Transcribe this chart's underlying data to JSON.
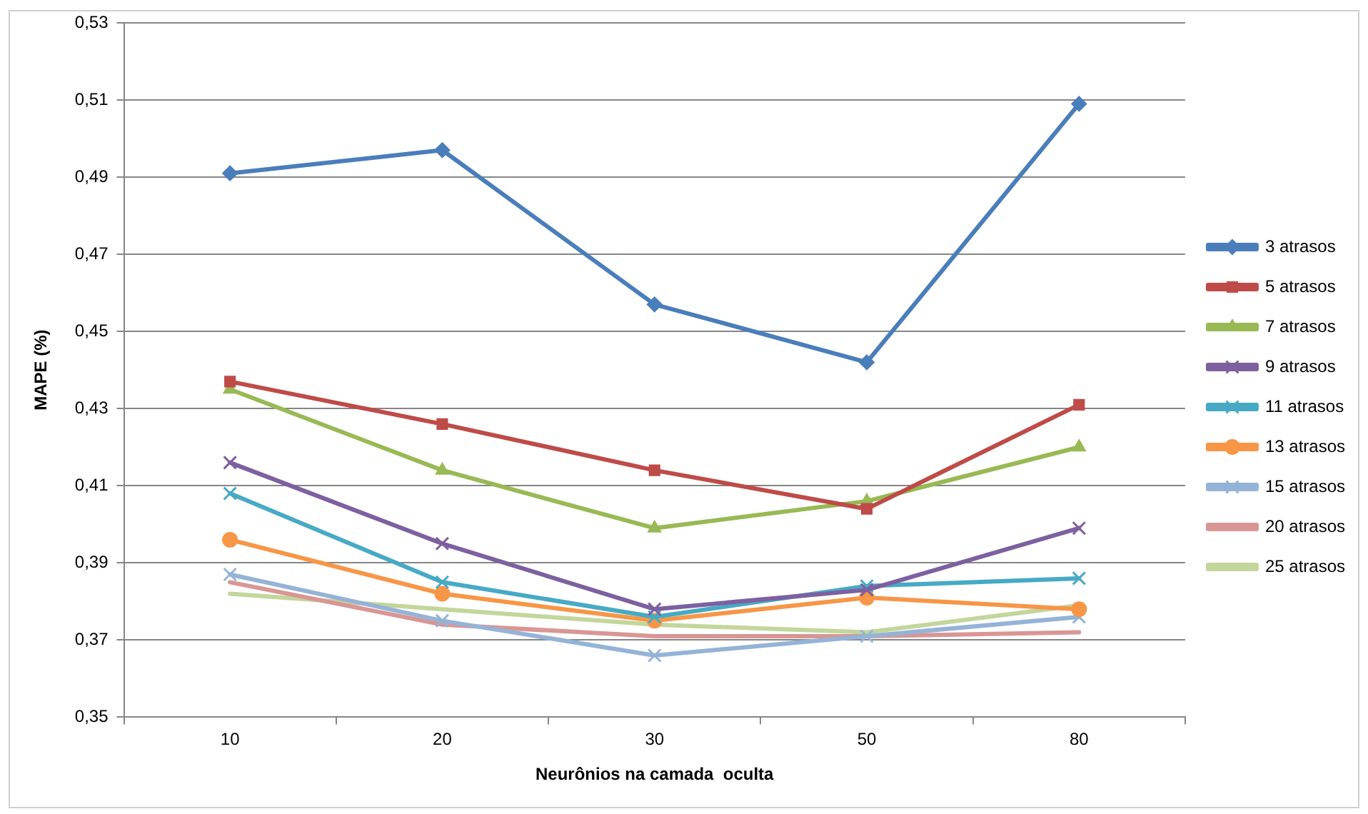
{
  "chart_data": {
    "type": "line",
    "xlabel": "Neurônios na camada  oculta",
    "ylabel": "MAPE (%)",
    "categories": [
      "10",
      "20",
      "30",
      "50",
      "80"
    ],
    "series": [
      {
        "name": "3 atrasos",
        "color": "#4a7ebb",
        "marker": "diamond",
        "values": [
          0.491,
          0.497,
          0.457,
          0.442,
          0.509
        ]
      },
      {
        "name": "5 atrasos",
        "color": "#be4b48",
        "marker": "square",
        "values": [
          0.437,
          0.426,
          0.414,
          0.404,
          0.431
        ]
      },
      {
        "name": "7 atrasos",
        "color": "#98b954",
        "marker": "triangle",
        "values": [
          0.435,
          0.414,
          0.399,
          0.406,
          0.42
        ]
      },
      {
        "name": "9 atrasos",
        "color": "#7d60a0",
        "marker": "cross",
        "values": [
          0.416,
          0.395,
          0.378,
          0.383,
          0.399
        ]
      },
      {
        "name": "11 atrasos",
        "color": "#46aac5",
        "marker": "cross",
        "values": [
          0.408,
          0.385,
          0.376,
          0.384,
          0.386
        ]
      },
      {
        "name": "13 atrasos",
        "color": "#f79646",
        "marker": "circle",
        "values": [
          0.396,
          0.382,
          0.375,
          0.381,
          0.378
        ]
      },
      {
        "name": "15 atrasos",
        "color": "#95b3d7",
        "marker": "cross",
        "values": [
          0.387,
          0.375,
          0.366,
          0.371,
          0.376
        ]
      },
      {
        "name": "20 atrasos",
        "color": "#d99694",
        "marker": "none",
        "values": [
          0.385,
          0.374,
          0.371,
          0.371,
          0.372
        ]
      },
      {
        "name": "25 atrasos",
        "color": "#c3d69b",
        "marker": "none",
        "values": [
          0.382,
          0.378,
          0.374,
          0.372,
          0.379
        ]
      }
    ],
    "ylim": [
      0.35,
      0.53
    ],
    "yticks": [
      {
        "value": 0.35,
        "label": "0,35"
      },
      {
        "value": 0.37,
        "label": "0,37"
      },
      {
        "value": 0.39,
        "label": "0,39"
      },
      {
        "value": 0.41,
        "label": "0,41"
      },
      {
        "value": 0.43,
        "label": "0,43"
      },
      {
        "value": 0.45,
        "label": "0,45"
      },
      {
        "value": 0.47,
        "label": "0,47"
      },
      {
        "value": 0.49,
        "label": "0,49"
      },
      {
        "value": 0.51,
        "label": "0,51"
      },
      {
        "value": 0.53,
        "label": "0,53"
      }
    ],
    "grid": "y",
    "legend": "right"
  }
}
